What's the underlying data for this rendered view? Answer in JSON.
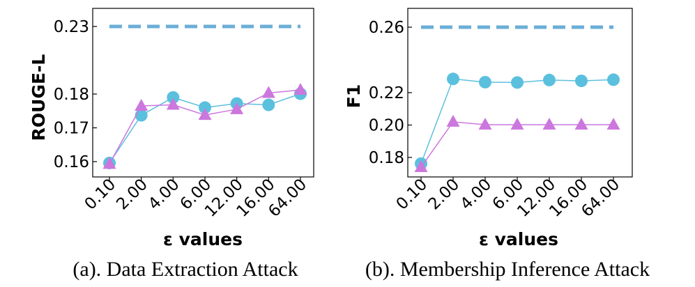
{
  "colors": {
    "circle_series": "#5bc0de",
    "triangle_series": "#cc77dd",
    "dashed_line": "#6baed6"
  },
  "chart_data": [
    {
      "type": "line",
      "caption": "(a). Data Extraction Attack",
      "xlabel": "ε values",
      "ylabel": "ROUGE-L",
      "categories": [
        "0.10",
        "2.00",
        "4.00",
        "6.00",
        "12.00",
        "16.00",
        "64.00"
      ],
      "yticks": [
        "0.16",
        "0.17",
        "0.18",
        "0.23"
      ],
      "y_axis_note": "broken scale: 0.18 -> 0.23 gap is compressed",
      "series": [
        {
          "name": "circle",
          "marker": "circle",
          "values": [
            0.1596,
            0.1737,
            0.179,
            0.176,
            0.1772,
            0.1768,
            0.1802
          ]
        },
        {
          "name": "triangle",
          "marker": "triangle",
          "values": [
            0.1593,
            0.1765,
            0.1768,
            0.1738,
            0.1755,
            0.1808,
            0.183
          ]
        },
        {
          "name": "baseline",
          "marker": "dashed",
          "values": [
            0.23,
            0.23,
            0.23,
            0.23,
            0.23,
            0.23,
            0.23
          ]
        }
      ]
    },
    {
      "type": "line",
      "caption": "(b). Membership Inference Attack",
      "xlabel": "ε values",
      "ylabel": "F1",
      "categories": [
        "0.10",
        "2.00",
        "4.00",
        "6.00",
        "12.00",
        "16.00",
        "64.00"
      ],
      "yticks": [
        "0.18",
        "0.20",
        "0.22",
        "0.26"
      ],
      "y_axis_note": "broken scale: 0.22 -> 0.26 gap is compressed",
      "series": [
        {
          "name": "circle",
          "marker": "circle",
          "values": [
            0.1762,
            0.2284,
            0.2264,
            0.2262,
            0.2277,
            0.2272,
            0.2279
          ]
        },
        {
          "name": "triangle",
          "marker": "triangle",
          "values": [
            0.174,
            0.202,
            0.2002,
            0.2002,
            0.2002,
            0.2002,
            0.2002
          ]
        },
        {
          "name": "baseline",
          "marker": "dashed",
          "values": [
            0.26,
            0.26,
            0.26,
            0.26,
            0.26,
            0.26,
            0.26
          ]
        }
      ]
    }
  ]
}
